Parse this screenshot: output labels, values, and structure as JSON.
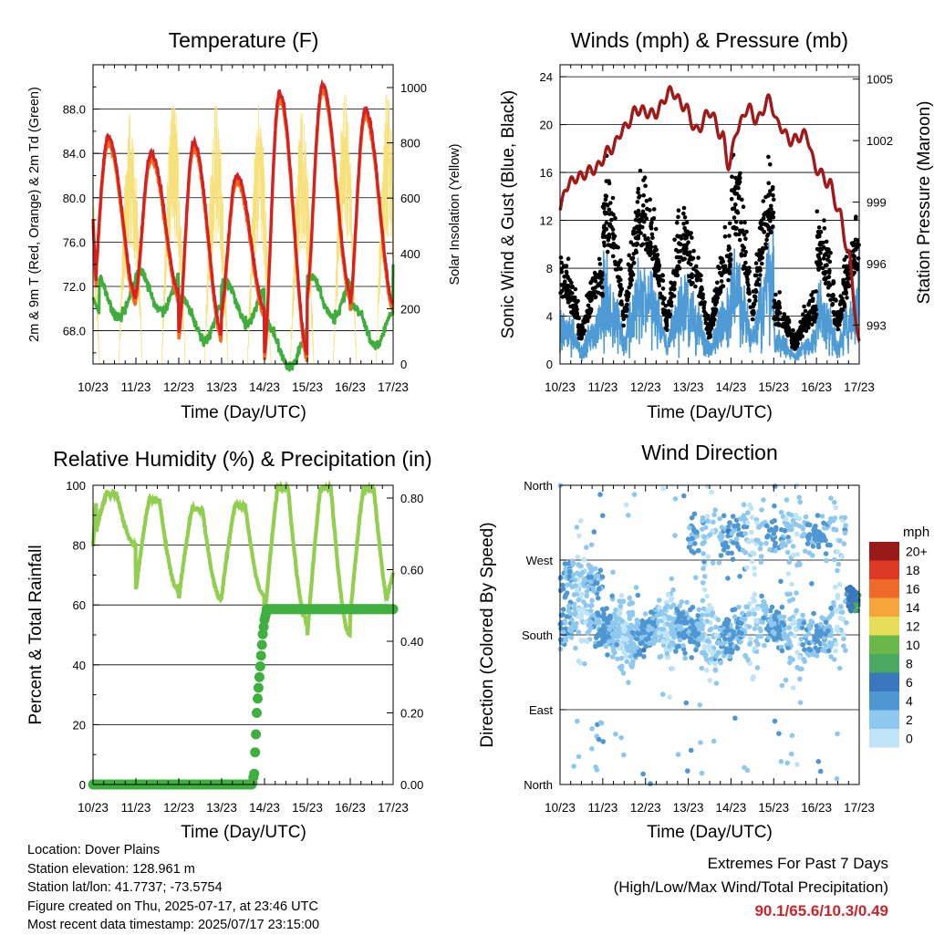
{
  "x_ticks": [
    "10/23",
    "11/23",
    "12/23",
    "13/23",
    "14/23",
    "15/23",
    "16/23",
    "17/23"
  ],
  "colors": {
    "temp_2m": "#d42222",
    "temp_9m": "#f26b21",
    "dewpoint": "#3fae3c",
    "solar": "#f7e17a",
    "pressure": "#a01a1a",
    "gust": "#000000",
    "wind": "#4e9ad4",
    "rh": "#92cf50",
    "precip": "#3fb03f"
  },
  "panels": {
    "temperature": {
      "title": "Temperature (F)",
      "ylabel_left": "2m & 9m T (Red, Orange) & 2m Td (Green)",
      "ylabel_right": "Solar Insolation (Yellow)",
      "xlabel": "Time (Day/UTC)",
      "yticks_left": [
        "68.0",
        "72.0",
        "76.0",
        "80.0",
        "84.0",
        "88.0"
      ],
      "yticks_right": [
        "0",
        "200",
        "400",
        "600",
        "800",
        "1000"
      ]
    },
    "winds": {
      "title": "Winds (mph) & Pressure (mb)",
      "ylabel_left": "Sonic Wind & Gust (Blue, Black)",
      "ylabel_right": "Station Pressure (Maroon)",
      "xlabel": "Time (Day/UTC)",
      "yticks_left": [
        "0",
        "4",
        "8",
        "12",
        "16",
        "20",
        "24"
      ],
      "yticks_right": [
        "993",
        "996",
        "999",
        "1002",
        "1005"
      ]
    },
    "humidity": {
      "title": "Relative Humidity (%) & Precipitation (in)",
      "ylabel_left": "Percent & Total Rainfall",
      "xlabel": "Time (Day/UTC)",
      "yticks_left": [
        "0",
        "20",
        "40",
        "60",
        "80",
        "100"
      ],
      "yticks_right": [
        "0.00",
        "0.20",
        "0.40",
        "0.60",
        "0.80"
      ]
    },
    "direction": {
      "title": "Wind Direction",
      "ylabel_left": "Direction (Colored By Speed)",
      "xlabel": "Time (Day/UTC)",
      "yticks_left": [
        "North",
        "East",
        "South",
        "West",
        "North"
      ],
      "legend_title": "mph",
      "legend_labels": [
        "0",
        "2",
        "4",
        "6",
        "8",
        "10",
        "12",
        "14",
        "16",
        "18",
        "20+"
      ],
      "legend_colors": [
        "#bfe3f7",
        "#8ec8ee",
        "#4f97d2",
        "#3a78bd",
        "#4aa860",
        "#6ab84a",
        "#e6dd5a",
        "#f6a43c",
        "#ef6a2a",
        "#dc3a25",
        "#b8211d",
        "#9a1a1a"
      ]
    }
  },
  "chart_data": [
    {
      "type": "line",
      "title": "Temperature (F)",
      "xlabel": "Time (Day/UTC)",
      "x": [
        "10/23",
        "11/23",
        "12/23",
        "13/23",
        "14/23",
        "15/23",
        "16/23",
        "17/23"
      ],
      "ylim": [
        65,
        92
      ],
      "ylim_right": [
        0,
        1000
      ],
      "series": [
        {
          "name": "2m T",
          "values": [
            78,
            85,
            84,
            86,
            82,
            89,
            90,
            85
          ]
        },
        {
          "name": "9m T",
          "values": [
            77,
            84,
            83,
            85,
            81,
            88,
            89,
            85
          ]
        },
        {
          "name": "2m Td",
          "values": [
            71,
            72,
            69,
            70,
            67,
            72,
            69,
            74
          ]
        },
        {
          "name": "Solar Insolation",
          "axis": "right",
          "values": [
            450,
            1000,
            980,
            990,
            950,
            1000,
            1000,
            920
          ]
        }
      ]
    },
    {
      "type": "scatter",
      "title": "Winds (mph) & Pressure (mb)",
      "xlabel": "Time (Day/UTC)",
      "x": [
        "10/23",
        "11/23",
        "12/23",
        "13/23",
        "14/23",
        "15/23",
        "16/23",
        "17/23"
      ],
      "ylim": [
        0,
        25
      ],
      "ylim_right": [
        991.1,
        1005.7
      ],
      "series": [
        {
          "name": "Sonic Wind",
          "values": [
            2,
            6,
            7,
            5,
            9,
            3,
            6,
            9
          ]
        },
        {
          "name": "Gust",
          "values": [
            4,
            12,
            16,
            9,
            14,
            6,
            12,
            20
          ]
        },
        {
          "name": "Station Pressure",
          "axis": "right",
          "values": [
            999.7,
            1002.0,
            1004.0,
            1003.5,
            1001.0,
            1003.0,
            997.5,
            992.0
          ]
        }
      ]
    },
    {
      "type": "line",
      "title": "Relative Humidity (%) & Precipitation (in)",
      "xlabel": "Time (Day/UTC)",
      "x": [
        "10/23",
        "11/23",
        "12/23",
        "13/23",
        "14/23",
        "15/23",
        "16/23",
        "17/23"
      ],
      "ylim": [
        0,
        100
      ],
      "ylim_right": [
        0,
        0.8
      ],
      "series": [
        {
          "name": "Relative Humidity",
          "values": [
            80,
            96,
            92,
            90,
            98,
            99,
            99,
            70
          ]
        },
        {
          "name": "Total Rainfall",
          "axis": "right",
          "values": [
            0,
            0,
            0,
            0,
            0.49,
            0.49,
            0.49,
            0.49
          ]
        }
      ]
    },
    {
      "type": "scatter",
      "title": "Wind Direction",
      "xlabel": "Time (Day/UTC)",
      "x": [
        "10/23",
        "11/23",
        "12/23",
        "13/23",
        "14/23",
        "15/23",
        "16/23",
        "17/23"
      ],
      "ylim": [
        0,
        360
      ],
      "series": [
        {
          "name": "Direction",
          "values": [
            225,
            180,
            180,
            200,
            240,
            250,
            190,
            230
          ]
        }
      ]
    }
  ],
  "info": {
    "location": "Location: Dover Plains",
    "elevation": "Station elevation: 128.961 m",
    "latlon": "Station lat/lon: 41.7737; -73.5754",
    "created": "Figure created on Thu, 2025-07-17, at 23:46 UTC",
    "recent": "Most recent data timestamp: 2025/07/17 23:15:00"
  },
  "extremes": {
    "line1": "Extremes For Past 7 Days",
    "line2": "(High/Low/Max Wind/Total Precipitation)",
    "values": "90.1/65.6/10.3/0.49"
  }
}
